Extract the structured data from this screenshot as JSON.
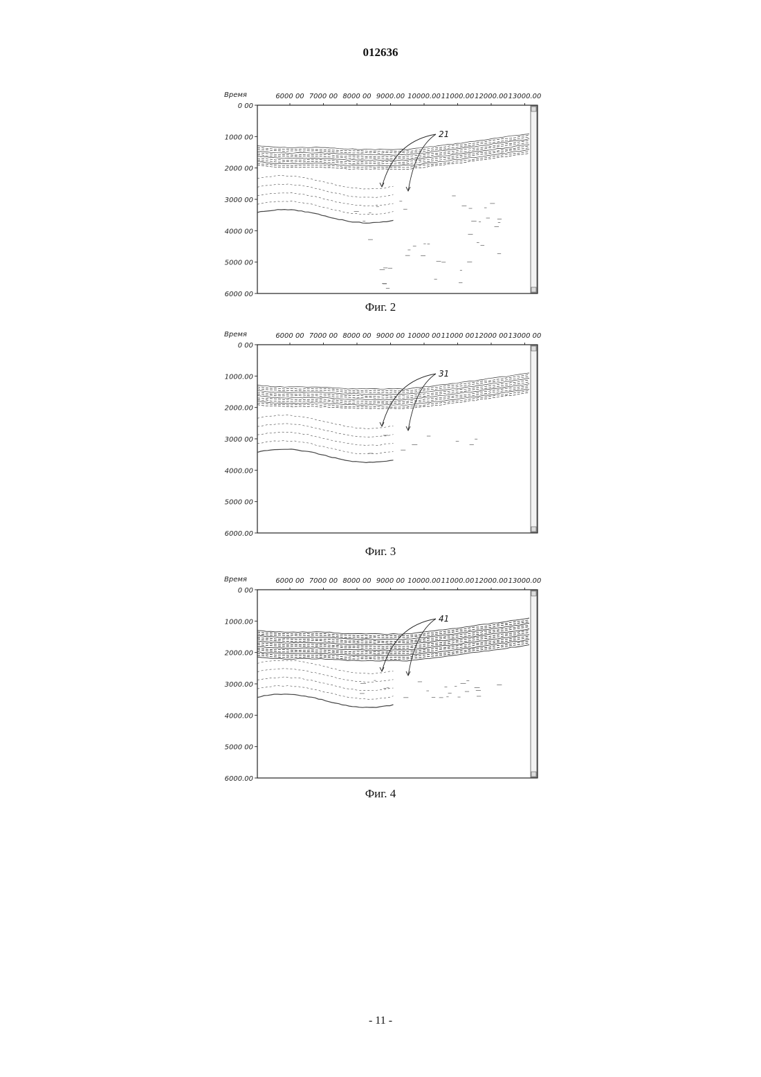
{
  "header": {
    "doc_number": "012636"
  },
  "figures": [
    {
      "caption": "Фиг. 2",
      "callout": "21",
      "y_axis_title": "Время",
      "x_ticks": [
        "6000 00",
        "7000 00",
        "8000 00",
        "9000.00",
        "10000.00",
        "11000.00",
        "12000.00",
        "13000.00"
      ],
      "y_ticks": [
        "0 00",
        "1000 00",
        "2000 00",
        "3000 00",
        "4000 00",
        "5000 00",
        "6000 00"
      ]
    },
    {
      "caption": "Фиг. 3",
      "callout": "31",
      "y_axis_title": "Время",
      "x_ticks": [
        "6000 00",
        "7000 00",
        "8000 00",
        "9000 00",
        "10000 00",
        "11000 00",
        "12000 00",
        "13000 00"
      ],
      "y_ticks": [
        "0 00",
        "1000.00",
        "2000.00",
        "3000 00",
        "4000.00",
        "5000 00",
        "6000.00"
      ]
    },
    {
      "caption": "Фиг. 4",
      "callout": "41",
      "y_axis_title": "Время",
      "x_ticks": [
        "6000 00",
        "7000 00",
        "8000 00",
        "9000 00",
        "10000.00",
        "11000.00",
        "12000.00",
        "13000.00"
      ],
      "y_ticks": [
        "0 00",
        "1000.00",
        "2000.00",
        "3000.00",
        "4000.00",
        "5000 00",
        "6000.00"
      ]
    }
  ],
  "footer": {
    "page_number": "- 11 -"
  }
}
